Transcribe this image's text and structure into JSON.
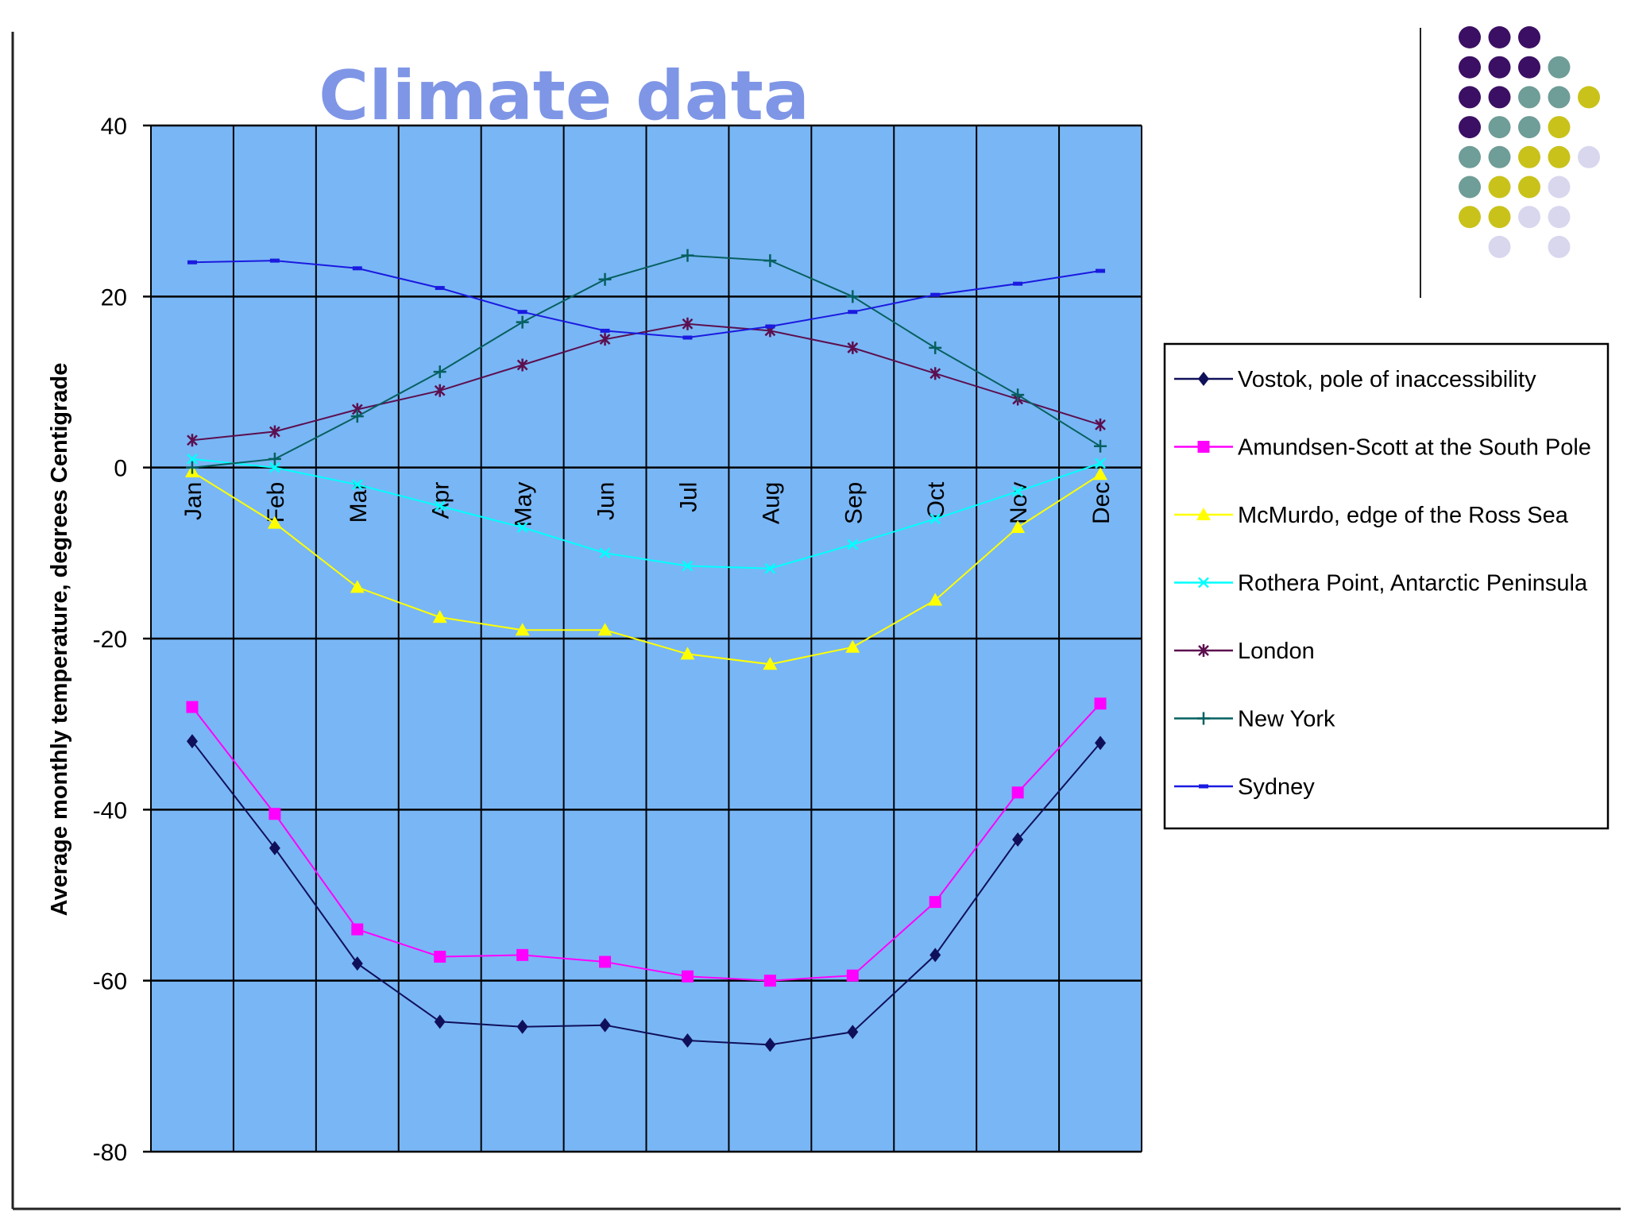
{
  "slide": {
    "title": "Climate data",
    "title_color": "#7f96e6",
    "dot_colors": {
      "purple": "#3b0f63",
      "teal": "#6f9d97",
      "olive": "#c9c21a",
      "lavender": "#d9d7ee"
    }
  },
  "chart_data": {
    "type": "line",
    "title": "",
    "xlabel": "",
    "ylabel": "Average monthly temperature, degrees Centigrade",
    "ylim": [
      -80,
      40
    ],
    "yticks": [
      -80,
      -60,
      -40,
      -20,
      0,
      20,
      40
    ],
    "y_tick_labels": [
      "-80",
      "-60",
      "-40",
      "-20",
      "0",
      "20",
      "40"
    ],
    "categories": [
      "Jan",
      "Feb",
      "Mar",
      "Apr",
      "May",
      "Jun",
      "Jul",
      "Aug",
      "Sep",
      "Oct",
      "Nov",
      "Dec"
    ],
    "grid": true,
    "plot_background": "#79b6f5",
    "legend_position": "right",
    "series": [
      {
        "name": "Vostok, pole of inaccessibility",
        "color": "#10105a",
        "marker": "diamond",
        "values": [
          -32,
          -44.5,
          -58,
          -64.8,
          -65.4,
          -65.2,
          -67,
          -67.5,
          -66,
          -57,
          -43.5,
          -32.2
        ]
      },
      {
        "name": "Amundsen-Scott at the South Pole",
        "color": "#ff00ff",
        "marker": "square",
        "values": [
          -28,
          -40.5,
          -54,
          -57.2,
          -57,
          -57.8,
          -59.5,
          -60,
          -59.4,
          -50.8,
          -38,
          -27.6
        ]
      },
      {
        "name": "McMurdo, edge of the Ross Sea",
        "color": "#ffff00",
        "marker": "triangle",
        "values": [
          -0.5,
          -6.5,
          -14,
          -17.5,
          -19,
          -19,
          -21.8,
          -23,
          -21,
          -15.5,
          -7,
          -0.8
        ]
      },
      {
        "name": "Rothera Point, Antarctic Peninsula",
        "color": "#00ffff",
        "marker": "x",
        "values": [
          1,
          0,
          -2,
          -4.5,
          -7,
          -10,
          -11.5,
          -11.8,
          -9,
          -6,
          -2.8,
          0.5
        ]
      },
      {
        "name": "London",
        "color": "#5c0f4f",
        "marker": "star",
        "values": [
          3.2,
          4.2,
          6.8,
          9,
          12,
          15,
          16.8,
          16,
          14,
          11,
          8,
          5
        ]
      },
      {
        "name": "New York",
        "color": "#066060",
        "marker": "plus",
        "values": [
          0,
          1,
          6,
          11.2,
          17,
          22,
          24.8,
          24.2,
          20,
          14,
          8.5,
          2.5
        ]
      },
      {
        "name": "Sydney",
        "color": "#1a1ae0",
        "marker": "dash",
        "values": [
          24,
          24.2,
          23.3,
          21,
          18.2,
          16,
          15.2,
          16.5,
          18.2,
          20.2,
          21.5,
          23
        ]
      }
    ]
  }
}
